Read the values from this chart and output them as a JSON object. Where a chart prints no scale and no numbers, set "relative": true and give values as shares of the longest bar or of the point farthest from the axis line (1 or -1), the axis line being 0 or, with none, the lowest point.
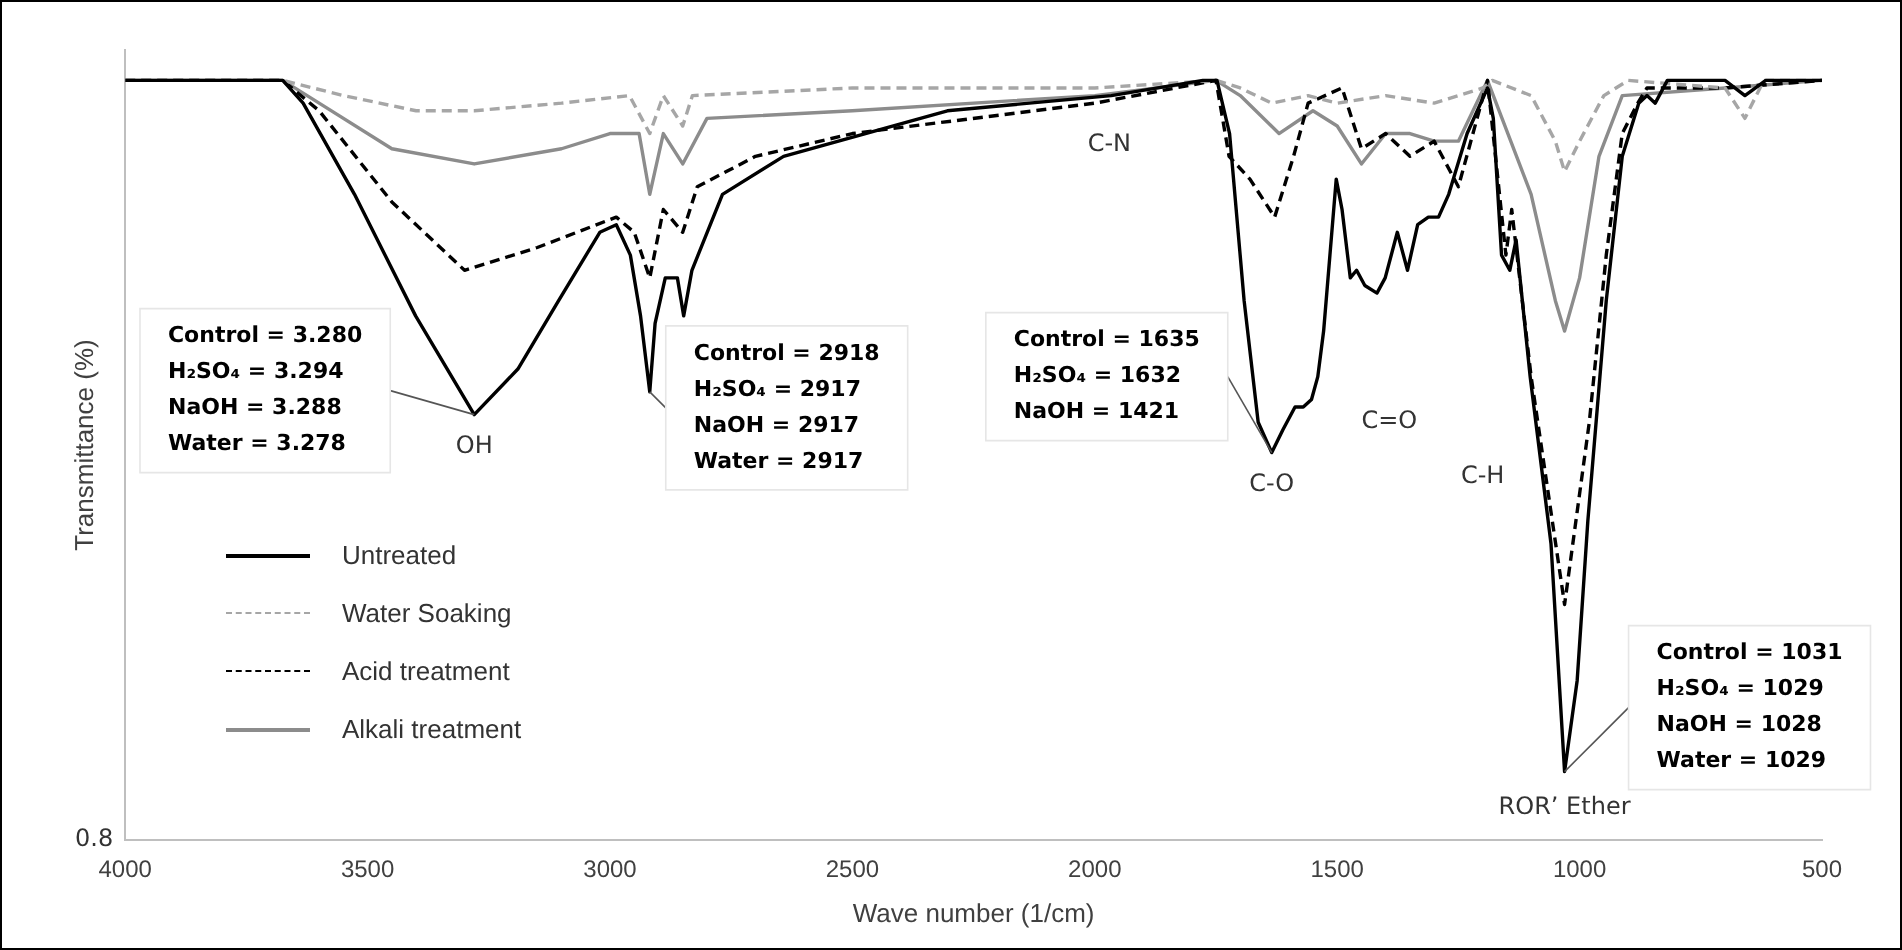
{
  "chart_data": {
    "type": "line",
    "xlabel": "Wave number (1/cm)",
    "ylabel": "Transmittance (%)",
    "relative": true,
    "xlim": [
      4000,
      500
    ],
    "xticks": [
      4000,
      3500,
      3000,
      2500,
      2000,
      1500,
      1000,
      500
    ],
    "legend": "bottom left",
    "grid": false,
    "series": [
      {
        "name": "Untreated",
        "color": "#000000",
        "line_style": "solid",
        "x": [
          4000,
          3675,
          3633,
          3527,
          3401,
          3280,
          3190,
          3106,
          3021,
          2987,
          2958,
          2937,
          2918,
          2907,
          2886,
          2861,
          2848,
          2831,
          2768,
          2642,
          2473,
          2304,
          2135,
          1966,
          1777,
          1748,
          1722,
          1692,
          1663,
          1635,
          1612,
          1587,
          1570,
          1553,
          1540,
          1528,
          1502,
          1490,
          1473,
          1460,
          1443,
          1418,
          1401,
          1376,
          1355,
          1334,
          1312,
          1291,
          1270,
          1232,
          1190,
          1178,
          1161,
          1144,
          1131,
          1102,
          1059,
          1031,
          1005,
          983,
          945,
          912,
          878,
          861,
          844,
          819,
          764,
          700,
          659,
          616,
          500
        ],
        "values": [
          1.0,
          1.0,
          0.97,
          0.85,
          0.69,
          0.56,
          0.62,
          0.71,
          0.8,
          0.81,
          0.77,
          0.69,
          0.59,
          0.68,
          0.74,
          0.74,
          0.69,
          0.75,
          0.85,
          0.9,
          0.93,
          0.96,
          0.97,
          0.98,
          1.0,
          1.0,
          0.93,
          0.71,
          0.55,
          0.51,
          0.54,
          0.57,
          0.57,
          0.58,
          0.61,
          0.67,
          0.87,
          0.83,
          0.74,
          0.75,
          0.73,
          0.72,
          0.74,
          0.8,
          0.75,
          0.81,
          0.82,
          0.82,
          0.85,
          0.93,
          0.99,
          0.95,
          0.77,
          0.75,
          0.79,
          0.61,
          0.39,
          0.09,
          0.21,
          0.42,
          0.71,
          0.9,
          0.97,
          0.98,
          0.97,
          1.0,
          1.0,
          1.0,
          0.98,
          1.0,
          1.0
        ]
      },
      {
        "name": "Water Soaking",
        "color": "#a6a6a6",
        "line_style": "dashed",
        "x": [
          4000,
          3675,
          3550,
          3400,
          3280,
          3100,
          2960,
          2918,
          2890,
          2850,
          2830,
          2500,
          2000,
          1750,
          1700,
          1635,
          1560,
          1500,
          1400,
          1300,
          1200,
          1180,
          1100,
          1050,
          1031,
          1000,
          950,
          900,
          700,
          659,
          620,
          500
        ],
        "values": [
          1.0,
          1.0,
          0.98,
          0.96,
          0.96,
          0.97,
          0.98,
          0.93,
          0.98,
          0.94,
          0.98,
          0.99,
          0.99,
          1.0,
          0.99,
          0.97,
          0.98,
          0.97,
          0.98,
          0.97,
          0.99,
          1.0,
          0.98,
          0.92,
          0.88,
          0.92,
          0.98,
          1.0,
          0.99,
          0.95,
          1.0,
          1.0
        ]
      },
      {
        "name": "Acid treatment",
        "color": "#000000",
        "line_style": "dashed",
        "x": [
          4000,
          3675,
          3600,
          3450,
          3300,
          3150,
          2987,
          2950,
          2918,
          2890,
          2850,
          2820,
          2700,
          2500,
          2000,
          1750,
          1723,
          1680,
          1629,
          1590,
          1560,
          1490,
          1450,
          1400,
          1350,
          1300,
          1250,
          1190,
          1152,
          1140,
          1100,
          1031,
          980,
          945,
          912,
          880,
          861,
          700,
          500
        ],
        "values": [
          1.0,
          1.0,
          0.96,
          0.84,
          0.75,
          0.78,
          0.82,
          0.8,
          0.74,
          0.83,
          0.8,
          0.86,
          0.9,
          0.93,
          0.97,
          1.0,
          0.9,
          0.87,
          0.82,
          0.9,
          0.97,
          0.99,
          0.91,
          0.93,
          0.9,
          0.92,
          0.86,
          1.0,
          0.77,
          0.83,
          0.61,
          0.31,
          0.55,
          0.77,
          0.93,
          0.97,
          0.99,
          0.99,
          1.0
        ]
      },
      {
        "name": "Alkali treatment",
        "color": "#8c8c8c",
        "line_style": "solid",
        "x": [
          4000,
          3675,
          3600,
          3450,
          3280,
          3100,
          3000,
          2940,
          2918,
          2890,
          2850,
          2800,
          2500,
          2000,
          1750,
          1700,
          1620,
          1550,
          1500,
          1450,
          1400,
          1350,
          1300,
          1250,
          1190,
          1160,
          1100,
          1050,
          1031,
          1000,
          960,
          912,
          700,
          500
        ],
        "values": [
          1.0,
          1.0,
          0.97,
          0.91,
          0.89,
          0.91,
          0.93,
          0.93,
          0.85,
          0.93,
          0.89,
          0.95,
          0.96,
          0.98,
          1.0,
          0.98,
          0.93,
          0.96,
          0.94,
          0.89,
          0.93,
          0.93,
          0.92,
          0.92,
          1.0,
          0.95,
          0.85,
          0.71,
          0.67,
          0.74,
          0.9,
          0.98,
          0.99,
          1.0
        ]
      }
    ],
    "annotations": [
      {
        "text": "OH",
        "x": 3280,
        "y": 0.56
      },
      {
        "text": "Control = 3.280\nH₂SO₄ = 3.294\nNaOH = 3.288\nWater = 3.278",
        "x": 3280,
        "y": 0.56
      },
      {
        "text": "Control = 2918\nH₂SO₄ = 2917\nNaOH = 2917\nWater = 2917",
        "x": 2918,
        "y": 0.59
      },
      "C-N",
      {
        "text": "C-O",
        "x": 1635,
        "y": 0.51
      },
      "C=O",
      {
        "text": "Control = 1635\nH₂SO₄ = 1632\nNaOH = 1421",
        "x": 1635,
        "y": 0.51
      },
      "C-H",
      {
        "text": "ROR’ Ether",
        "x": 1031,
        "y": 0.09
      },
      {
        "text": "Control = 1031\nH₂SO₄ = 1029\nNaOH = 1028\nWater = 1029",
        "x": 1031,
        "y": 0.09
      },
      "0.8"
    ]
  }
}
